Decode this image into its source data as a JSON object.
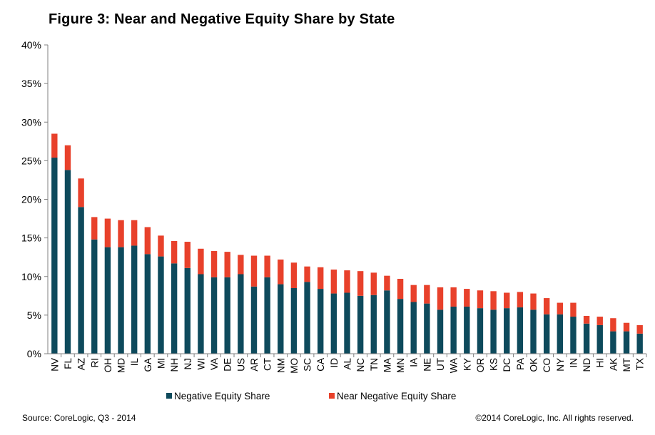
{
  "title": "Figure 3: Near and Negative Equity Share by State",
  "footer": {
    "source": "Source: CoreLogic, Q3 - 2014",
    "copyright": "©2014 CoreLogic, Inc. All rights reserved."
  },
  "colors": {
    "negative": "#0e4a5c",
    "near_negative": "#e8412b"
  },
  "chart_data": {
    "type": "bar",
    "stacked": true,
    "ylim": [
      0,
      40
    ],
    "yticks": [
      0,
      5,
      10,
      15,
      20,
      25,
      30,
      35,
      40
    ],
    "ytick_labels": [
      "0%",
      "5%",
      "10%",
      "15%",
      "20%",
      "25%",
      "30%",
      "35%",
      "40%"
    ],
    "legend_position": "bottom",
    "grid": false,
    "categories": [
      "NV",
      "FL",
      "AZ",
      "RI",
      "OH",
      "MD",
      "IL",
      "GA",
      "MI",
      "NH",
      "NJ",
      "WI",
      "VA",
      "DE",
      "US",
      "AR",
      "CT",
      "NM",
      "MO",
      "SC",
      "CA",
      "ID",
      "AL",
      "NC",
      "TN",
      "MA",
      "MN",
      "IA",
      "NE",
      "UT",
      "WA",
      "KY",
      "OR",
      "KS",
      "DC",
      "PA",
      "OK",
      "CO",
      "NY",
      "IN",
      "ND",
      "HI",
      "AK",
      "MT",
      "TX"
    ],
    "series": [
      {
        "name": "Negative Equity Share",
        "values": [
          25.4,
          23.8,
          19.0,
          14.8,
          13.8,
          13.8,
          14.0,
          12.9,
          12.6,
          11.7,
          11.1,
          10.3,
          9.9,
          9.9,
          10.3,
          8.7,
          9.9,
          9.0,
          8.5,
          9.3,
          8.4,
          7.8,
          7.9,
          7.5,
          7.6,
          8.2,
          7.1,
          6.7,
          6.5,
          5.7,
          6.1,
          6.1,
          5.9,
          5.7,
          5.9,
          6.0,
          5.7,
          5.1,
          5.1,
          4.8,
          3.9,
          3.7,
          2.9,
          2.9,
          2.6
        ]
      },
      {
        "name": "Near Negative Equity Share",
        "values": [
          3.1,
          3.2,
          3.7,
          2.9,
          3.7,
          3.5,
          3.3,
          3.5,
          2.7,
          2.9,
          3.4,
          3.3,
          3.4,
          3.3,
          2.5,
          4.0,
          2.8,
          3.2,
          3.3,
          2.0,
          2.8,
          3.1,
          2.9,
          3.2,
          2.9,
          1.9,
          2.6,
          2.2,
          2.4,
          2.9,
          2.5,
          2.3,
          2.3,
          2.4,
          2.0,
          2.0,
          2.1,
          2.1,
          1.5,
          1.8,
          1.0,
          1.1,
          1.7,
          1.1,
          1.1
        ]
      }
    ]
  }
}
